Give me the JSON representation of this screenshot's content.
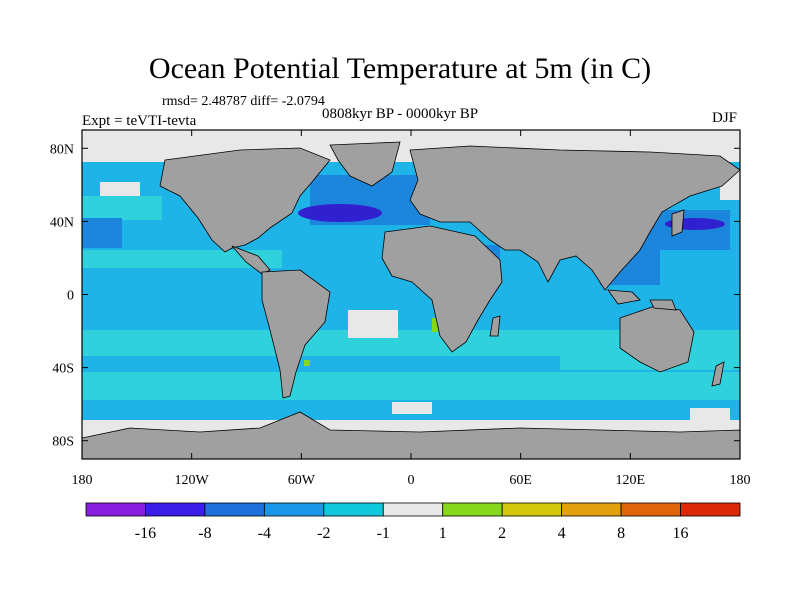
{
  "title": "Ocean Potential Temperature at 5m (in C)",
  "stats": "rmsd= 2.48787 diff= -2.0794",
  "subtitle": "0808kyr BP - 0000kyr BP",
  "experiment": "Expt = teVTI-tevta",
  "season": "DJF",
  "axes": {
    "lat": {
      "range": [
        -90,
        90
      ],
      "ticks": [
        {
          "value": 80,
          "label": "80N"
        },
        {
          "value": 40,
          "label": "40N"
        },
        {
          "value": 0,
          "label": "0"
        },
        {
          "value": -40,
          "label": "40S"
        },
        {
          "value": -80,
          "label": "80S"
        }
      ]
    },
    "lon": {
      "range": [
        -180,
        180
      ],
      "ticks": [
        {
          "value": -180,
          "label": "180"
        },
        {
          "value": -120,
          "label": "120W"
        },
        {
          "value": -60,
          "label": "60W"
        },
        {
          "value": 0,
          "label": "0"
        },
        {
          "value": 60,
          "label": "60E"
        },
        {
          "value": 120,
          "label": "120E"
        },
        {
          "value": 180,
          "label": "180"
        }
      ]
    }
  },
  "colorbar": {
    "colors": [
      "#8a1ee0",
      "#3a1ee6",
      "#1f6fdc",
      "#1a97e8",
      "#12c8dc",
      "#e8e8e8",
      "#86d81a",
      "#d4c80e",
      "#e2a00c",
      "#e2640c",
      "#dc2a08"
    ],
    "labels": [
      "-16",
      "-8",
      "-4",
      "-2",
      "-1",
      "1",
      "2",
      "4",
      "8",
      "16"
    ]
  },
  "colors": {
    "land": "#a0a0a0",
    "ocean_base": "#1fb4e8",
    "ocean_light": "#2fd2dc",
    "ocean_dark": "#1c86dc",
    "ocean_deep": "#3020d0",
    "near_zero": "#e8e8e8",
    "warm_small": "#86d81a"
  }
}
